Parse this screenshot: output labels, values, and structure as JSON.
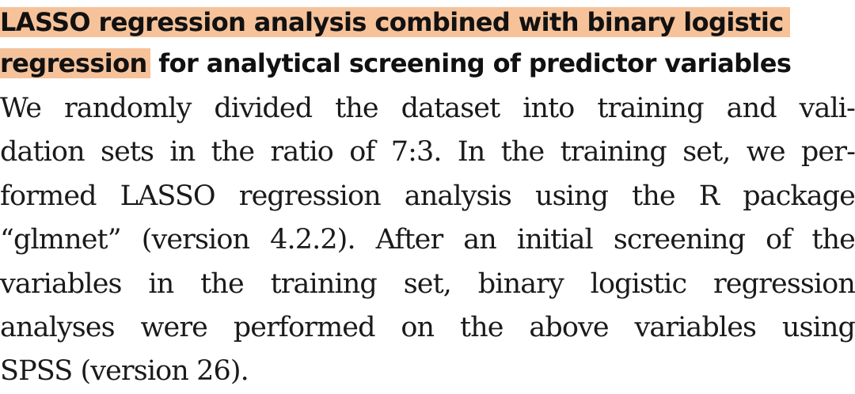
{
  "section": {
    "heading_highlight_line1": "LASSO regression analysis combined with binary logistic",
    "heading_highlight_line2": "regression",
    "heading_rest": " for analytical screening of predictor variables",
    "paragraph_lines": [
      "We randomly divided the dataset into training and vali-",
      "dation sets in the ratio of 7:3. In the training set, we per-",
      "formed LASSO regression analysis using the R package",
      "“glmnet” (version 4.2.2). After an initial screening of the",
      "variables in the training set, binary logistic regression",
      "analyses were performed on the above variables using",
      "SPSS (version 26)."
    ]
  },
  "colors": {
    "highlight": "#f6c29a",
    "text": "#1a1a1a"
  }
}
